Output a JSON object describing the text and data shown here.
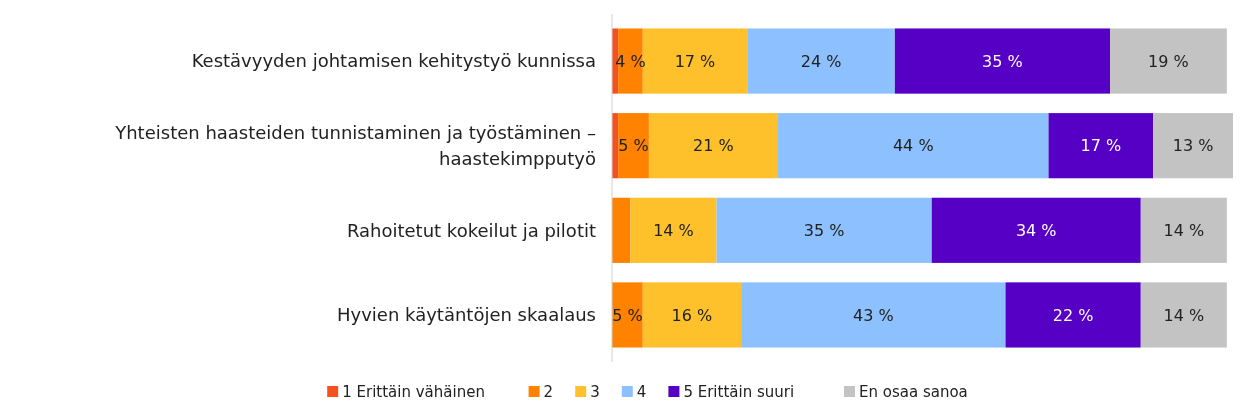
{
  "chart_data": {
    "type": "bar",
    "orientation": "horizontal",
    "stacked": true,
    "legend": "bottom",
    "xlim": [
      0,
      101
    ],
    "tick_labels": "y",
    "categories": [
      "Kestävyyden johtamisen kehitystyö kunnissa",
      "Yhteisten haasteiden tunnistaminen ja työstäminen – haastekimpputyö",
      "Rahoitetut kokeilut ja pilotit",
      "Hyvien käytäntöjen skaalaus"
    ],
    "series": [
      {
        "name": "1 Erittäin vähäinen",
        "color": "#f4511e",
        "values": [
          1,
          1,
          0,
          0
        ],
        "value_labels": [
          null,
          null,
          null,
          null
        ]
      },
      {
        "name": "2",
        "color": "#ff8200",
        "values": [
          4,
          5,
          3,
          5
        ],
        "value_labels": [
          "4 %",
          "5 %",
          null,
          "5 %"
        ]
      },
      {
        "name": "3",
        "color": "#ffc12b",
        "values": [
          17,
          21,
          14,
          16
        ],
        "value_labels": [
          "17 %",
          "21 %",
          "14 %",
          "16 %"
        ]
      },
      {
        "name": "4",
        "color": "#8cc0ff",
        "values": [
          24,
          44,
          35,
          43
        ],
        "value_labels": [
          "24 %",
          "44 %",
          "35 %",
          "43 %"
        ]
      },
      {
        "name": "5 Erittäin suuri",
        "color": "#5500c4",
        "values": [
          35,
          17,
          34,
          22
        ],
        "value_labels": [
          "35 %",
          "17 %",
          "34 %",
          "22 %"
        ]
      },
      {
        "name": "En osaa sanoa",
        "color": "#c3c3c3",
        "values": [
          19,
          13,
          14,
          14
        ],
        "value_labels": [
          "19 %",
          "13 %",
          "14 %",
          "14 %"
        ]
      }
    ]
  }
}
